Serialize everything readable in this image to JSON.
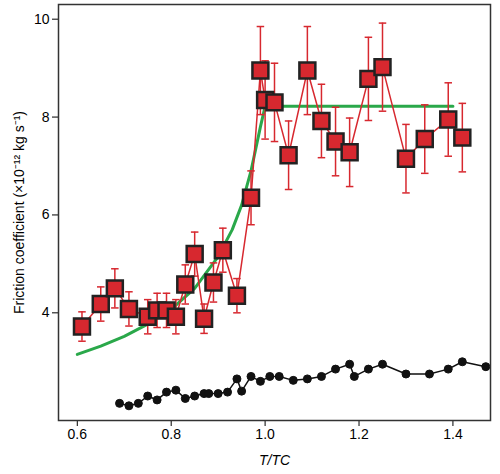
{
  "chart_data": {
    "type": "line",
    "x_label": "T/TC",
    "y_label": "Friction coefficient (×10⁻¹² kg s⁻¹)",
    "xlim": [
      0.56,
      1.48
    ],
    "xticks": [
      0.6,
      0.8,
      {
        "value": 1,
        "label": "1.0"
      },
      1.2,
      1.4
    ],
    "ylim": [
      1.8,
      10.3
    ],
    "yticks": [
      4,
      6,
      8,
      10
    ],
    "series": [
      {
        "type": "line",
        "color": "#2aa84a",
        "marker": "none",
        "line_style": "solid",
        "x": [
          0.6,
          0.65,
          0.7,
          0.75,
          0.8,
          0.85,
          0.9,
          0.93,
          0.95,
          0.97,
          0.99,
          1.0,
          1.4
        ],
        "values": [
          3.15,
          3.32,
          3.52,
          3.77,
          4.07,
          4.5,
          5.15,
          5.7,
          6.2,
          6.9,
          7.8,
          8.22,
          8.22
        ]
      },
      {
        "type": "line",
        "color": "#d7282f",
        "marker": "square",
        "line_style": "solid",
        "x": [
          0.61,
          0.65,
          0.68,
          0.71,
          0.75,
          0.77,
          0.79,
          0.81,
          0.83,
          0.85,
          0.87,
          0.89,
          0.91,
          0.94,
          0.97,
          0.99,
          1.0,
          1.02,
          1.05,
          1.09,
          1.12,
          1.15,
          1.18,
          1.22,
          1.25,
          1.3,
          1.34,
          1.39,
          1.42
        ],
        "values": [
          3.72,
          4.18,
          4.5,
          4.08,
          3.92,
          4.05,
          4.05,
          3.92,
          4.58,
          5.2,
          3.88,
          4.62,
          5.28,
          4.35,
          6.35,
          8.95,
          8.35,
          8.3,
          7.22,
          8.95,
          7.92,
          7.5,
          7.28,
          8.78,
          9.02,
          7.15,
          7.55,
          7.95,
          7.58
        ],
        "errors": [
          0.3,
          0.35,
          0.4,
          0.35,
          0.35,
          0.35,
          0.35,
          0.35,
          0.4,
          0.45,
          0.3,
          0.4,
          0.45,
          0.35,
          0.55,
          0.9,
          0.8,
          0.8,
          0.7,
          0.9,
          0.75,
          0.7,
          0.7,
          0.85,
          0.9,
          0.7,
          0.7,
          0.75,
          0.7
        ]
      },
      {
        "type": "line",
        "color": "#111111",
        "marker": "circle",
        "line_style": "solid",
        "x": [
          0.69,
          0.71,
          0.73,
          0.75,
          0.77,
          0.79,
          0.81,
          0.83,
          0.85,
          0.87,
          0.88,
          0.9,
          0.92,
          0.94,
          0.95,
          0.97,
          0.99,
          1.01,
          1.03,
          1.06,
          1.09,
          1.12,
          1.15,
          1.18,
          1.19,
          1.22,
          1.25,
          1.3,
          1.35,
          1.39,
          1.42,
          1.47
        ],
        "values": [
          2.15,
          2.1,
          2.15,
          2.3,
          2.22,
          2.38,
          2.42,
          2.25,
          2.3,
          2.35,
          2.35,
          2.35,
          2.38,
          2.65,
          2.4,
          2.7,
          2.6,
          2.7,
          2.7,
          2.62,
          2.65,
          2.7,
          2.85,
          2.95,
          2.7,
          2.85,
          2.95,
          2.75,
          2.75,
          2.85,
          3.0,
          2.9
        ]
      }
    ]
  }
}
